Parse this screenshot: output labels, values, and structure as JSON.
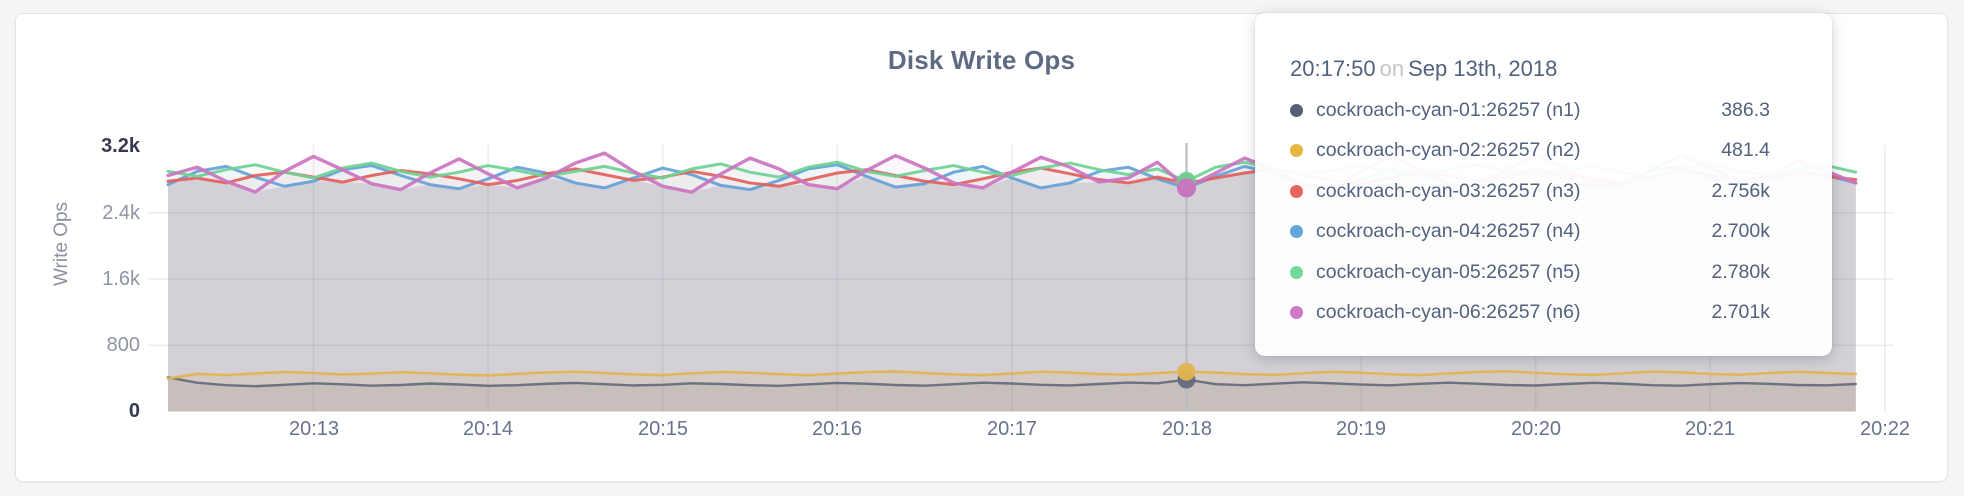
{
  "page": {
    "background": "#f4f5f6"
  },
  "panel": {
    "border_color": "#e3e4e6"
  },
  "chart": {
    "title": "Disk Write Ops",
    "y_axis_title": "Write Ops"
  },
  "tooltip": {
    "time": "20:17:50",
    "conjunction": "on",
    "date": "Sep 13th, 2018",
    "rows": [
      {
        "label": "cockroach-cyan-01:26257 (n1)",
        "value": "386.3",
        "color": "#565f75"
      },
      {
        "label": "cockroach-cyan-02:26257 (n2)",
        "value": "481.4",
        "color": "#e7b63e"
      },
      {
        "label": "cockroach-cyan-03:26257 (n3)",
        "value": "2.756k",
        "color": "#e8645f"
      },
      {
        "label": "cockroach-cyan-04:26257 (n4)",
        "value": "2.700k",
        "color": "#63a6d9"
      },
      {
        "label": "cockroach-cyan-05:26257 (n5)",
        "value": "2.780k",
        "color": "#71d99c"
      },
      {
        "label": "cockroach-cyan-06:26257 (n6)",
        "value": "2.701k",
        "color": "#cc79c6"
      }
    ]
  },
  "chart_data": {
    "type": "line",
    "title": "Disk Write Ops",
    "xlabel": "",
    "ylabel": "Write Ops",
    "ylim": [
      0,
      3200
    ],
    "grid": true,
    "y_tick_labels": [
      "3.2k",
      "2.4k",
      "1.6k",
      "800",
      "0"
    ],
    "y_tick_values": [
      3200,
      2400,
      1600,
      800,
      0
    ],
    "x_tick_labels": [
      "20:13",
      "20:14",
      "20:15",
      "20:16",
      "20:17",
      "20:18",
      "20:19",
      "20:20",
      "20:21",
      "20:22"
    ],
    "x_start": "20:12:10",
    "x_interval_seconds": 10,
    "hover": {
      "index": 35,
      "time": "20:17:50",
      "date": "Sep 13th, 2018",
      "values": [
        386.3,
        481.4,
        2756,
        2700,
        2780,
        2701
      ]
    },
    "series": [
      {
        "name": "cockroach-cyan-01:26257 (n1)",
        "color": "#636a7a",
        "line_width": 2.4,
        "fill_opacity": 0.13,
        "values": [
          412,
          348,
          318,
          305,
          322,
          340,
          328,
          312,
          320,
          338,
          326,
          310,
          318,
          335,
          345,
          330,
          315,
          322,
          340,
          332,
          318,
          310,
          328,
          345,
          336,
          320,
          312,
          330,
          348,
          338,
          322,
          315,
          332,
          350,
          340,
          386.3,
          330,
          318,
          336,
          352,
          340,
          325,
          316,
          334,
          348,
          336,
          320,
          314,
          332,
          346,
          335,
          318,
          312,
          330,
          344,
          334,
          320,
          316,
          332
        ]
      },
      {
        "name": "cockroach-cyan-02:26257 (n2)",
        "color": "#e2b44f",
        "line_width": 2.6,
        "fill_opacity": 0.15,
        "values": [
          398,
          455,
          440,
          460,
          478,
          465,
          448,
          458,
          475,
          462,
          445,
          435,
          455,
          472,
          480,
          465,
          448,
          440,
          462,
          478,
          468,
          450,
          438,
          458,
          476,
          484,
          466,
          448,
          440,
          460,
          480,
          470,
          452,
          444,
          464,
          481.4,
          470,
          452,
          442,
          462,
          480,
          468,
          450,
          440,
          460,
          478,
          486,
          468,
          450,
          442,
          462,
          482,
          472,
          454,
          444,
          464,
          480,
          466,
          452
        ]
      },
      {
        "name": "cockroach-cyan-03:26257 (n3)",
        "color": "#e2605d",
        "line_width": 3,
        "fill_opacity": 0.055,
        "values": [
          2780,
          2820,
          2760,
          2850,
          2890,
          2830,
          2770,
          2850,
          2910,
          2870,
          2810,
          2740,
          2790,
          2870,
          2930,
          2860,
          2790,
          2830,
          2900,
          2840,
          2760,
          2720,
          2800,
          2880,
          2920,
          2850,
          2780,
          2740,
          2810,
          2890,
          2940,
          2870,
          2800,
          2760,
          2830,
          2756,
          2820,
          2880,
          2930,
          2860,
          2790,
          2750,
          2820,
          2890,
          2850,
          2780,
          2830,
          2900,
          2870,
          2800,
          2760,
          2840,
          2910,
          2860,
          2790,
          2820,
          2880,
          2840,
          2800
        ]
      },
      {
        "name": "cockroach-cyan-04:26257 (n4)",
        "color": "#64a1d8",
        "line_width": 3,
        "fill_opacity": 0.055,
        "values": [
          2740,
          2900,
          2960,
          2830,
          2720,
          2780,
          2920,
          2970,
          2850,
          2740,
          2690,
          2810,
          2950,
          2880,
          2760,
          2700,
          2820,
          2940,
          2860,
          2730,
          2680,
          2790,
          2930,
          2980,
          2840,
          2710,
          2750,
          2890,
          2960,
          2820,
          2700,
          2760,
          2900,
          2950,
          2810,
          2700,
          2840,
          2960,
          2880,
          2740,
          2690,
          2800,
          2930,
          2870,
          2750,
          2710,
          2850,
          2940,
          2820,
          2720,
          2770,
          2910,
          2960,
          2830,
          2730,
          2790,
          2920,
          2850,
          2760
        ]
      },
      {
        "name": "cockroach-cyan-05:26257 (n5)",
        "color": "#6fd194",
        "line_width": 3,
        "fill_opacity": 0.055,
        "values": [
          2900,
          2840,
          2920,
          2980,
          2890,
          2820,
          2940,
          3000,
          2900,
          2830,
          2890,
          2970,
          2910,
          2840,
          2900,
          2960,
          2880,
          2820,
          2930,
          2990,
          2890,
          2830,
          2950,
          3010,
          2900,
          2840,
          2910,
          2970,
          2890,
          2850,
          2940,
          3000,
          2920,
          2860,
          2930,
          2780,
          2950,
          3010,
          2930,
          2870,
          2910,
          2970,
          2890,
          2830,
          2920,
          2980,
          2900,
          2840,
          2900,
          2960,
          2880,
          2830,
          2940,
          2990,
          2900,
          2850,
          2930,
          2970,
          2890
        ]
      },
      {
        "name": "cockroach-cyan-06:26257 (n6)",
        "color": "#ca74c0",
        "line_width": 3.4,
        "fill_opacity": 0.055,
        "values": [
          2850,
          2950,
          2780,
          2650,
          2900,
          3080,
          2920,
          2750,
          2680,
          2880,
          3050,
          2870,
          2700,
          2820,
          3000,
          3120,
          2900,
          2720,
          2650,
          2870,
          3060,
          2930,
          2740,
          2690,
          2910,
          3090,
          2940,
          2760,
          2700,
          2890,
          3070,
          2950,
          2770,
          2820,
          3010,
          2701,
          2880,
          3060,
          2920,
          2740,
          2690,
          2900,
          3080,
          2930,
          2750,
          2710,
          2920,
          3100,
          2940,
          2760,
          2720,
          2930,
          3090,
          2950,
          2780,
          2840,
          3020,
          2900,
          2760
        ]
      }
    ]
  }
}
